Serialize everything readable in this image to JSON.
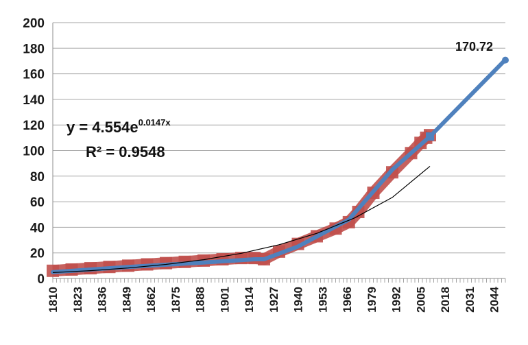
{
  "chart_data": {
    "type": "line",
    "title": "",
    "xlabel": "",
    "ylabel": "",
    "ylim": [
      0,
      200
    ],
    "y_ticks": [
      "0",
      "20",
      "40",
      "60",
      "80",
      "100",
      "120",
      "140",
      "160",
      "180",
      "200"
    ],
    "xlim": [
      1810,
      2050
    ],
    "x_ticks": [
      "1810",
      "1823",
      "1836",
      "1849",
      "1862",
      "1875",
      "1888",
      "1901",
      "1914",
      "1927",
      "1940",
      "1953",
      "1966",
      "1979",
      "1992",
      "2005",
      "2018",
      "2031",
      "2044"
    ],
    "grid": true,
    "legend": "none",
    "series": [
      {
        "color": "#c0504d",
        "marker": "square",
        "x": [
          1810,
          1820,
          1830,
          1840,
          1850,
          1860,
          1870,
          1880,
          1890,
          1900,
          1910,
          1917,
          1922,
          1930,
          1940,
          1950,
          1960,
          1967,
          1972,
          1980,
          1990,
          2000,
          2005,
          2008,
          2010
        ],
        "y": [
          6,
          7,
          8,
          9,
          10,
          11,
          12,
          13,
          14,
          15,
          16,
          16,
          15,
          21,
          27,
          33,
          39,
          44,
          52,
          67,
          83,
          98,
          106,
          110,
          112
        ]
      },
      {
        "color": "#4f81bd",
        "x": [
          1810,
          1850,
          1890,
          1917,
          1922,
          1940,
          1967,
          1990,
          2010,
          2050
        ],
        "y": [
          5,
          9,
          12.5,
          15,
          15,
          25,
          46,
          85,
          111,
          171
        ]
      },
      {
        "color": "#000000",
        "trendline": "exponential",
        "x": [
          1810,
          1830,
          1850,
          1870,
          1890,
          1910,
          1930,
          1950,
          1970,
          1990,
          2010
        ],
        "y": [
          4.6,
          6.1,
          8.2,
          11,
          14.7,
          19.7,
          26.4,
          35.3,
          47.3,
          63.3,
          87.7
        ]
      }
    ],
    "annotations": {
      "equation_main": "y = 4.554e",
      "equation_exp": "0.0147x",
      "r_squared": "R² = 0.9548",
      "end_label": "170.72",
      "end_point": {
        "x": 2050,
        "y": 170.72
      }
    }
  }
}
